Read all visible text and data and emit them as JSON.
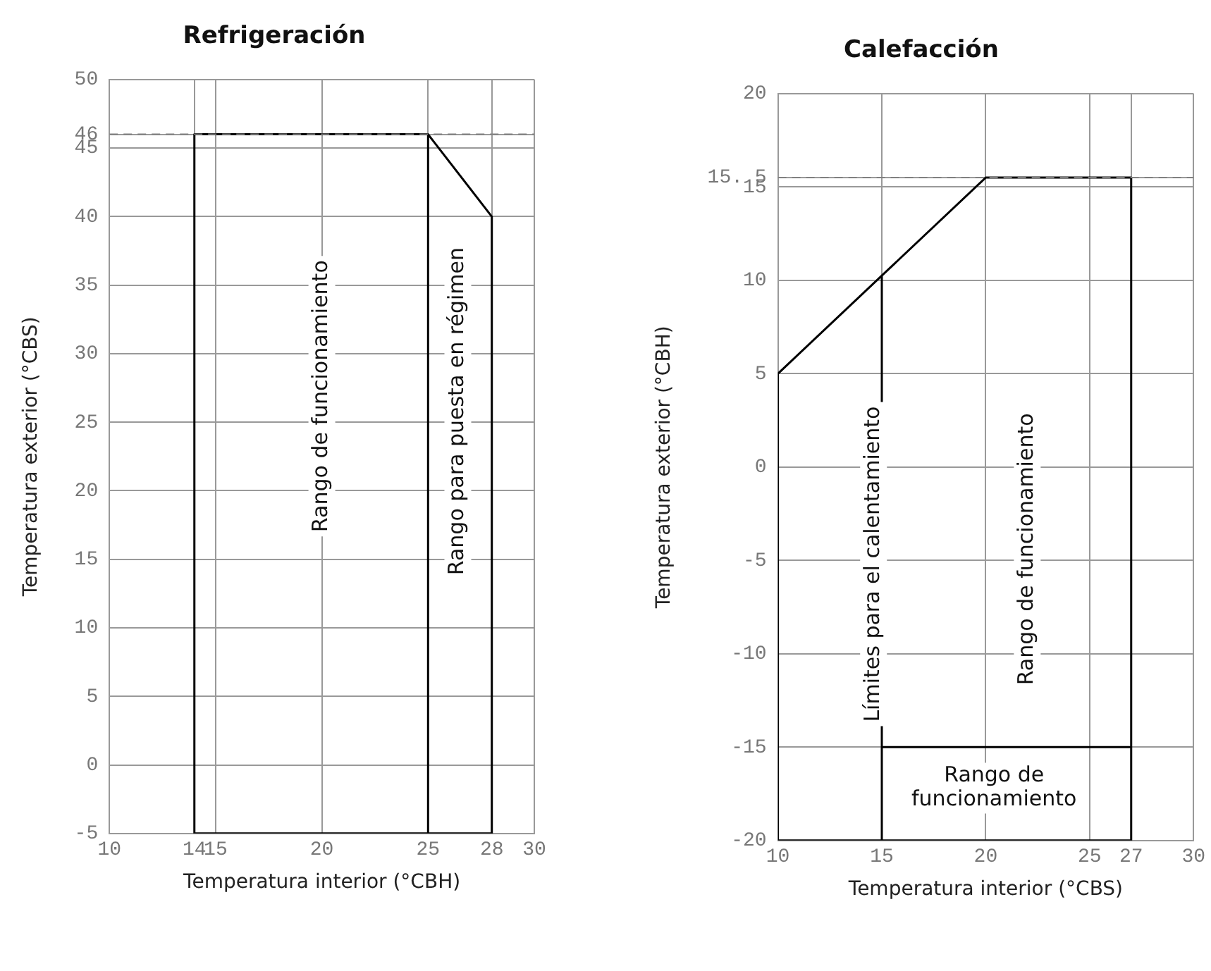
{
  "chart_data": [
    {
      "type": "line",
      "title": "Refrigeración",
      "xlabel": "Temperatura interior (°CBH)",
      "ylabel": "Temperatura exterior (°CBS)",
      "xlim": [
        10,
        30
      ],
      "ylim": [
        -5,
        50
      ],
      "xticks": [
        10,
        14,
        15,
        20,
        25,
        28,
        30
      ],
      "yticks": [
        -5,
        0,
        5,
        10,
        15,
        20,
        25,
        30,
        35,
        40,
        45,
        46,
        50
      ],
      "grid": true,
      "legend": false,
      "marker": "none",
      "line_style": "solid",
      "series": [
        {
          "color": "#000000",
          "x": [
            25,
            14,
            14,
            25,
            28,
            28,
            25,
            25
          ],
          "values": [
            46,
            46,
            -5,
            -5,
            -5,
            40,
            46,
            -5
          ]
        }
      ],
      "ref_lines": [
        {
          "axis": "y",
          "value": 46,
          "label": null,
          "color": "#808080",
          "line_style": "dashed"
        }
      ],
      "annotations": [
        "Rango de funcionamiento",
        "Rango para puesta en régimen"
      ]
    },
    {
      "type": "line",
      "title": "Calefacción",
      "xlabel": "Temperatura interior (°CBS)",
      "ylabel": "Temperatura exterior (°CBH)",
      "xlim": [
        10,
        30
      ],
      "ylim": [
        -20,
        20
      ],
      "xticks": [
        10,
        15,
        20,
        25,
        27,
        30
      ],
      "yticks": [
        -20,
        -15,
        -10,
        -5,
        0,
        5,
        10,
        15,
        {
          "value": 15.5,
          "label": "15. 5"
        },
        20
      ],
      "grid": true,
      "legend": false,
      "marker": "none",
      "line_style": "solid",
      "series": [
        {
          "color": "#000000",
          "x": [
            15,
            10,
            10,
            15,
            27,
            27,
            27,
            20,
            15,
            15,
            15,
            null,
            15,
            27
          ],
          "values": [
            10.25,
            5,
            -20,
            -20,
            -20,
            -15,
            15.5,
            15.5,
            10.25,
            -15,
            -20,
            null,
            -15,
            -15
          ]
        }
      ],
      "ref_lines": [
        {
          "axis": "y",
          "value": 15.5,
          "label": null,
          "color": "#808080",
          "line_style": "dashed"
        }
      ],
      "annotations": [
        "Límites para el calentamiento",
        "Rango de funcionamiento",
        "Rango de\nfuncionamiento"
      ]
    }
  ]
}
